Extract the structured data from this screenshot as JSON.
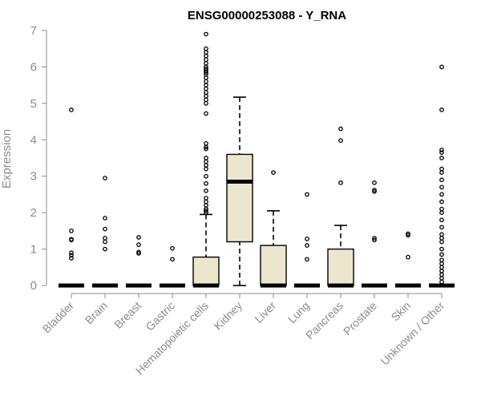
{
  "chart_data": {
    "type": "box",
    "title": "ENSG00000253088 - Y_RNA",
    "ylabel": "Expression",
    "xlabel": "",
    "ylim": [
      0,
      7
    ],
    "yticks": [
      0,
      1,
      2,
      3,
      4,
      5,
      6,
      7
    ],
    "box_fill": "#ede6cf",
    "categories": [
      "Bladder",
      "Brain",
      "Breast",
      "Gastric",
      "Hematopoietic cells",
      "Kidney",
      "Liver",
      "Lung",
      "Pancreas",
      "Prostate",
      "Skin",
      "Unknown / Other"
    ],
    "boxes": [
      {
        "category": "Bladder",
        "whisker_low": 0,
        "q1": 0,
        "median": 0,
        "q3": 0,
        "whisker_high": 0,
        "outliers": [
          4.82,
          1.5,
          1.27,
          1.25,
          0.9,
          0.83,
          0.75
        ]
      },
      {
        "category": "Brain",
        "whisker_low": 0,
        "q1": 0,
        "median": 0,
        "q3": 0,
        "whisker_high": 0,
        "outliers": [
          2.95,
          1.85,
          1.55,
          1.3,
          1.2,
          1.0
        ]
      },
      {
        "category": "Breast",
        "whisker_low": 0,
        "q1": 0,
        "median": 0,
        "q3": 0,
        "whisker_high": 0,
        "outliers": [
          1.32,
          1.12,
          0.92,
          0.88
        ]
      },
      {
        "category": "Gastric",
        "whisker_low": 0,
        "q1": 0,
        "median": 0,
        "q3": 0,
        "whisker_high": 0,
        "outliers": [
          1.02,
          0.72
        ]
      },
      {
        "category": "Hematopoietic cells",
        "whisker_low": 0,
        "q1": 0,
        "median": 0,
        "q3": 0.78,
        "whisker_high": 1.95,
        "outliers": [
          6.9,
          6.5,
          6.4,
          6.3,
          6.2,
          6.1,
          6.0,
          5.95,
          5.9,
          5.85,
          5.8,
          5.7,
          5.6,
          5.5,
          5.4,
          5.3,
          5.2,
          5.1,
          5.0,
          4.72,
          3.9,
          3.8,
          3.75,
          3.5,
          3.4,
          3.3,
          3.2,
          3.0,
          2.8,
          2.6,
          2.4,
          2.3,
          2.2,
          2.1,
          2.05,
          2.0
        ]
      },
      {
        "category": "Kidney",
        "whisker_low": 0,
        "q1": 1.2,
        "median": 2.85,
        "q3": 3.6,
        "whisker_high": 5.17,
        "outliers": []
      },
      {
        "category": "Liver",
        "whisker_low": 0,
        "q1": 0,
        "median": 0,
        "q3": 1.1,
        "whisker_high": 2.05,
        "outliers": [
          3.1
        ]
      },
      {
        "category": "Lung",
        "whisker_low": 0,
        "q1": 0,
        "median": 0,
        "q3": 0,
        "whisker_high": 0,
        "outliers": [
          2.5,
          1.28,
          1.1,
          0.72
        ]
      },
      {
        "category": "Pancreas",
        "whisker_low": 0,
        "q1": 0,
        "median": 0,
        "q3": 1.0,
        "whisker_high": 1.65,
        "outliers": [
          4.3,
          3.98,
          2.82
        ]
      },
      {
        "category": "Prostate",
        "whisker_low": 0,
        "q1": 0,
        "median": 0,
        "q3": 0,
        "whisker_high": 0,
        "outliers": [
          2.82,
          2.62,
          2.58,
          1.3,
          1.25
        ]
      },
      {
        "category": "Skin",
        "whisker_low": 0,
        "q1": 0,
        "median": 0,
        "q3": 0,
        "whisker_high": 0,
        "outliers": [
          1.42,
          1.38,
          0.78
        ]
      },
      {
        "category": "Unknown / Other",
        "whisker_low": 0,
        "q1": 0,
        "median": 0,
        "q3": 0,
        "whisker_high": 0,
        "outliers": [
          6.0,
          4.82,
          3.72,
          3.65,
          3.5,
          3.2,
          3.1,
          2.9,
          2.7,
          2.5,
          2.3,
          2.1,
          2.0,
          1.8,
          1.6,
          1.4,
          1.3,
          1.2,
          1.0,
          0.85,
          0.7,
          0.6,
          0.5,
          0.4,
          0.3,
          0.2,
          0.1
        ]
      }
    ]
  }
}
